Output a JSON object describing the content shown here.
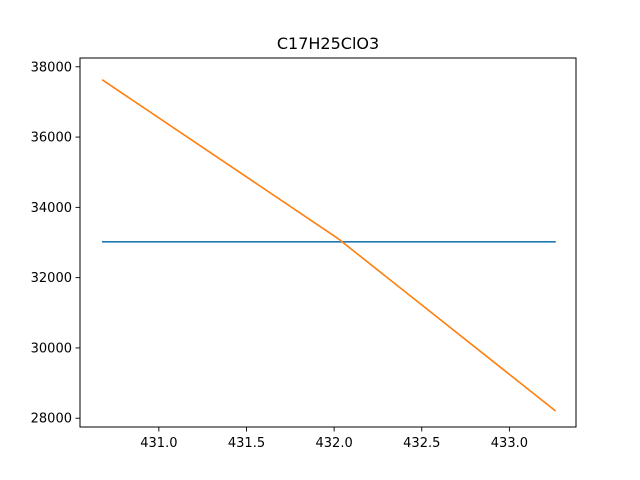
{
  "chart_data": {
    "type": "line",
    "title": "C17H25ClO3",
    "xlabel": "",
    "ylabel": "",
    "xlim": [
      430.55,
      433.38
    ],
    "ylim": [
      27750,
      38250
    ],
    "x_ticks": [
      431.0,
      431.5,
      432.0,
      432.5,
      433.0
    ],
    "x_tick_labels": [
      "431.0",
      "431.5",
      "432.0",
      "432.5",
      "433.0"
    ],
    "y_ticks": [
      28000,
      30000,
      32000,
      34000,
      36000,
      38000
    ],
    "y_tick_labels": [
      "28000",
      "30000",
      "32000",
      "34000",
      "36000",
      "38000"
    ],
    "grid": false,
    "series": [
      {
        "color": "#1f77b4",
        "points": [
          [
            430.68,
            33020
          ],
          [
            433.26,
            33020
          ]
        ]
      },
      {
        "color": "#ff7f0e",
        "points": [
          [
            430.68,
            37620
          ],
          [
            432.02,
            33120
          ],
          [
            433.26,
            28220
          ]
        ]
      }
    ]
  }
}
